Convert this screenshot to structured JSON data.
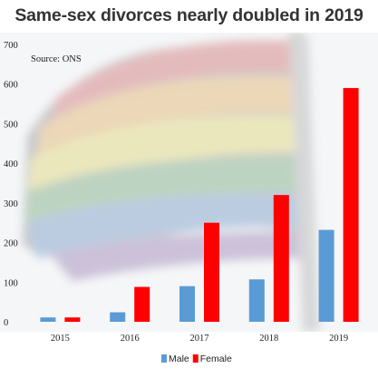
{
  "chart_data": {
    "type": "bar",
    "title": "Same-sex divorces nearly doubled in 2019",
    "source": "Source: ONS",
    "categories": [
      "2015",
      "2016",
      "2017",
      "2018",
      "2019"
    ],
    "series": [
      {
        "name": "Male",
        "color": "#5b9bd5",
        "values": [
          11,
          24,
          90,
          107,
          232
        ]
      },
      {
        "name": "Female",
        "color": "#ff0000",
        "values": [
          11,
          88,
          250,
          320,
          590
        ]
      }
    ],
    "y_ticks": [
      "0",
      "100",
      "200",
      "300",
      "400",
      "500",
      "600",
      "700"
    ],
    "ylim": [
      0,
      700
    ],
    "legend_position": "bottom",
    "grid": false,
    "background": "faded rainbow flag photo"
  }
}
